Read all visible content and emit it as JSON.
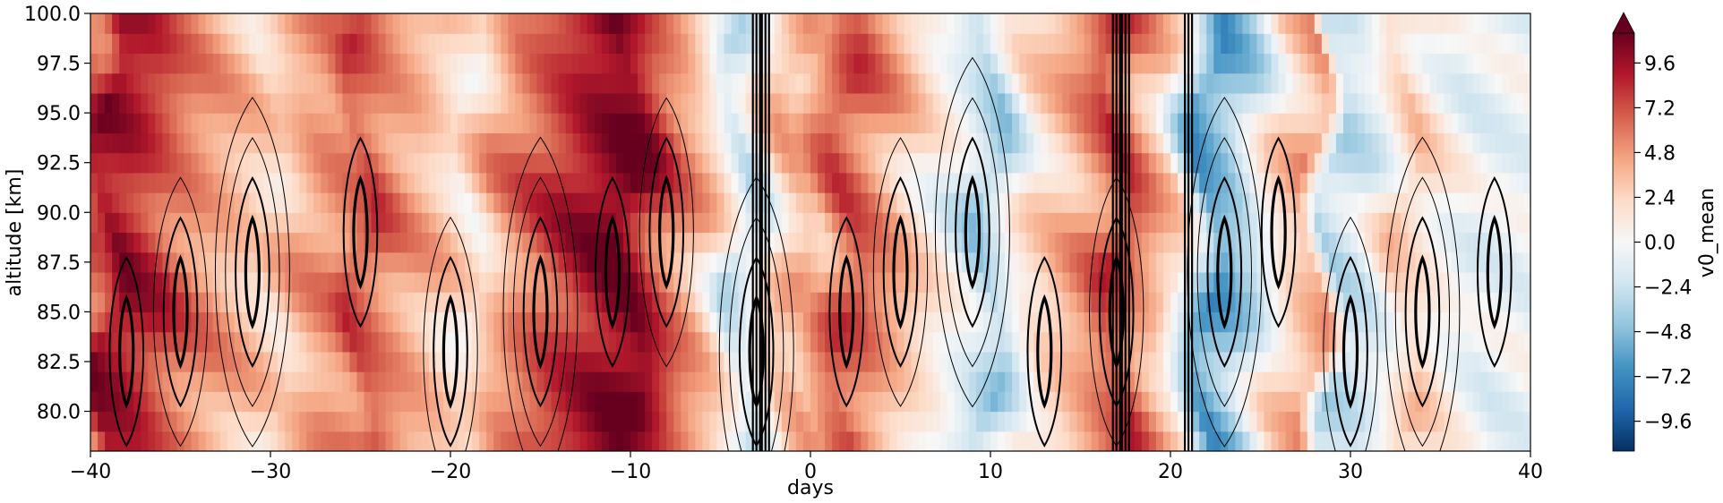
{
  "chart_data": {
    "type": "heatmap",
    "xlabel": "days",
    "ylabel": "altitude [km]",
    "colorbar_label": "v0_mean",
    "xlim": [
      -40,
      40
    ],
    "ylim": [
      78,
      100
    ],
    "x_ticks": [
      -40,
      -30,
      -20,
      -10,
      0,
      10,
      20,
      30,
      40
    ],
    "x_tick_labels": [
      "−40",
      "−30",
      "−20",
      "−10",
      "0",
      "10",
      "20",
      "30",
      "40"
    ],
    "y_ticks": [
      80.0,
      82.5,
      85.0,
      87.5,
      90.0,
      92.5,
      95.0,
      97.5,
      100.0
    ],
    "y_tick_labels": [
      "80.0",
      "82.5",
      "85.0",
      "87.5",
      "90.0",
      "92.5",
      "95.0",
      "97.5",
      "100.0"
    ],
    "colorbar_ticks": [
      9.6,
      7.2,
      4.8,
      2.4,
      0.0,
      -2.4,
      -4.8,
      -7.2,
      -9.6
    ],
    "colorbar_tick_labels": [
      "9.6",
      "7.2",
      "4.8",
      "2.4",
      "0.0",
      "−2.4",
      "−4.8",
      "−7.2",
      "−9.6"
    ],
    "colorbar_range": [
      -11.2,
      11.2
    ],
    "colorbar_extend": "max",
    "colormap": "RdBu_r",
    "colormap_stops": [
      "#053061",
      "#2166ac",
      "#4393c3",
      "#92c5de",
      "#d1e5f0",
      "#f7f7f7",
      "#fddbc7",
      "#f4a582",
      "#d6604d",
      "#b2182b",
      "#67001f"
    ],
    "day_profile": {
      "days": [
        -40,
        -39,
        -37,
        -35,
        -33,
        -31,
        -30,
        -28,
        -26,
        -25,
        -23,
        -21,
        -19,
        -17,
        -15,
        -13,
        -11,
        -10,
        -8,
        -6,
        -5,
        -4,
        -3,
        -2,
        -1,
        0,
        1,
        2,
        4,
        6,
        8,
        10,
        12,
        14,
        16,
        17,
        19,
        20,
        21,
        22,
        24,
        26,
        28,
        29,
        31,
        33,
        35,
        37,
        40
      ],
      "v0_mean": [
        6.5,
        10.0,
        8.5,
        6.0,
        4.5,
        3.0,
        2.0,
        4.5,
        5.5,
        7.5,
        5.0,
        3.5,
        1.0,
        5.0,
        7.0,
        9.0,
        10.5,
        11.0,
        6.5,
        3.5,
        1.0,
        -2.5,
        -1.0,
        2.5,
        4.0,
        3.5,
        6.0,
        7.5,
        5.0,
        2.0,
        -0.5,
        -4.0,
        1.5,
        3.5,
        6.0,
        8.0,
        4.0,
        2.5,
        -2.0,
        -6.5,
        -3.5,
        2.0,
        4.5,
        -3.0,
        -1.5,
        3.0,
        0.5,
        -1.0,
        -0.5
      ]
    },
    "contour_lines": "black solid contour lines overlaid, thicker for higher levels"
  }
}
